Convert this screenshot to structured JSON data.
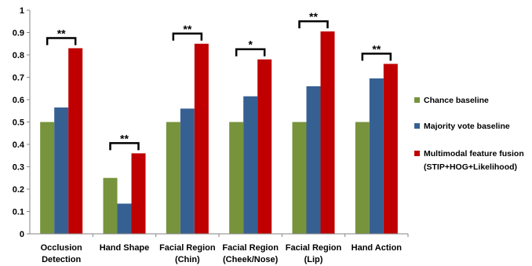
{
  "chart_data": {
    "type": "bar",
    "title": "",
    "xlabel": "",
    "ylabel": "",
    "ylim": [
      0,
      1
    ],
    "yticks": [
      0,
      0.1,
      0.2,
      0.3,
      0.4,
      0.5,
      0.6,
      0.7,
      0.8,
      0.9,
      1
    ],
    "grid": false,
    "legend_position": "right",
    "categories": [
      [
        "Occlusion",
        "Detection"
      ],
      [
        "Hand Shape"
      ],
      [
        "Facial Region",
        "(Chin)"
      ],
      [
        "Facial Region",
        "(Cheek/Nose)"
      ],
      [
        "Facial Region",
        "(Lip)"
      ],
      [
        "Hand Action"
      ]
    ],
    "series": [
      {
        "name": "Chance baseline",
        "color": "#77933c",
        "values": [
          0.5,
          0.25,
          0.5,
          0.5,
          0.5,
          0.5
        ]
      },
      {
        "name": "Majority vote baseline",
        "color": "#376092",
        "values": [
          0.565,
          0.135,
          0.56,
          0.615,
          0.66,
          0.695
        ]
      },
      {
        "name": "Multimodal feature fusion (STIP+HOG+Likelihood)",
        "color": "#c00000",
        "legend_lines": [
          "Multimodal feature fusion",
          "(STIP+HOG+Likelihood)"
        ],
        "values": [
          0.83,
          0.36,
          0.85,
          0.78,
          0.905,
          0.76
        ]
      }
    ],
    "significance": [
      "**",
      "**",
      "**",
      "*",
      "**",
      "**"
    ]
  }
}
